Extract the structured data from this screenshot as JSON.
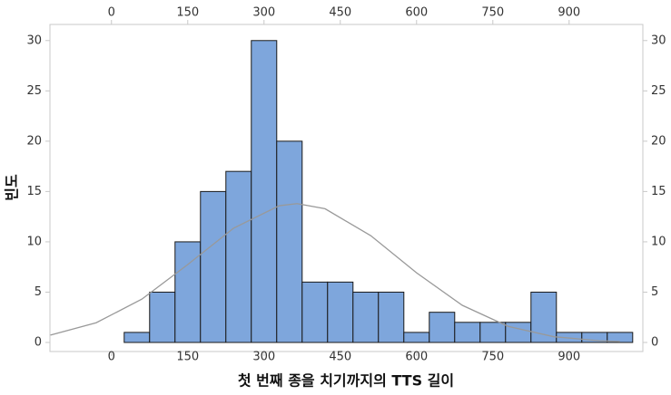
{
  "chart_data": {
    "type": "histogram",
    "xlabel": "첫 번째 종을 치기까지의 TTS 길이",
    "ylabel": "빈도",
    "bins": [
      25,
      75,
      125,
      175,
      225,
      275,
      325,
      375,
      425,
      475,
      525,
      575,
      625,
      675,
      725,
      775,
      825,
      875,
      925,
      975,
      1025
    ],
    "counts": [
      1,
      5,
      10,
      15,
      17,
      30,
      20,
      6,
      6,
      5,
      5,
      1,
      3,
      2,
      2,
      2,
      5,
      1,
      1,
      1
    ],
    "color": "#7ea6dc",
    "edge_color": "#1a1a1a",
    "fit": {
      "color": "#999999",
      "x": [
        -120,
        -30,
        60,
        150,
        240,
        330,
        365,
        420,
        510,
        600,
        690,
        780,
        870,
        960,
        1000
      ],
      "values": [
        0.73,
        1.96,
        4.31,
        7.74,
        11.35,
        13.59,
        13.8,
        13.29,
        10.61,
        6.92,
        3.69,
        1.6,
        0.57,
        0.17,
        0.09
      ]
    },
    "xlim": [
      -121,
      1045
    ],
    "ylim": [
      -0.9,
      31.6
    ],
    "xticks": [
      0,
      150,
      300,
      450,
      600,
      750,
      900
    ],
    "yticks": [
      0,
      5,
      10,
      15,
      20,
      25,
      30
    ],
    "mirror_axes": true
  }
}
